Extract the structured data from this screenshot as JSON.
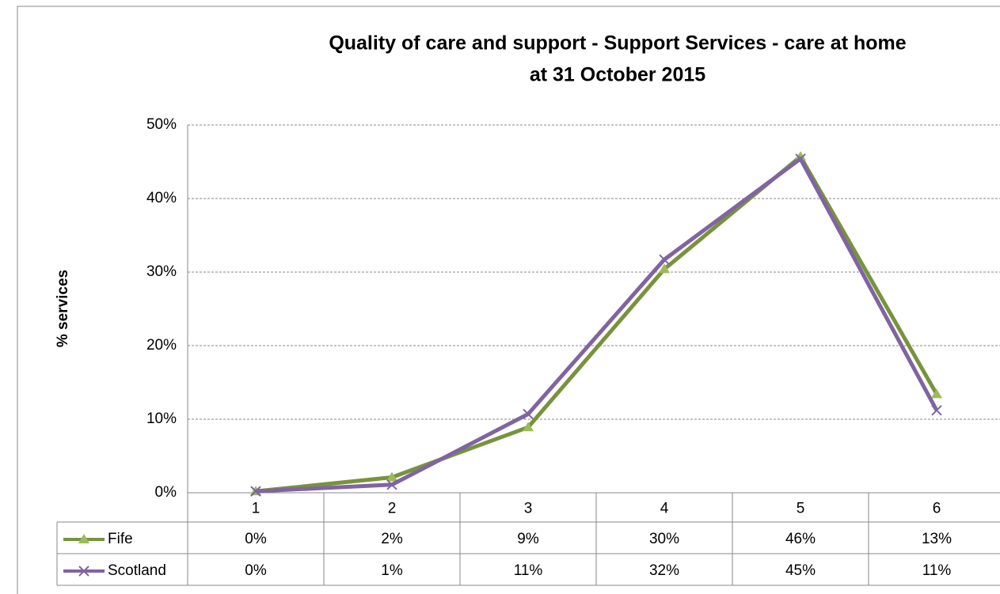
{
  "chart_data": {
    "type": "line",
    "title": [
      "Quality of care and support -  Support Services - care at home",
      "at 31 October 2015"
    ],
    "y_label": "% services",
    "categories": [
      "1",
      "2",
      "3",
      "4",
      "5",
      "6"
    ],
    "series": [
      {
        "name": "Fife",
        "color": "#77933c",
        "marker_color": "#9bbb59",
        "marker": "triangle",
        "values": [
          0.2,
          2.1,
          8.9,
          30.4,
          45.7,
          13.4
        ],
        "value_labels": [
          "0%",
          "2%",
          "9%",
          "30%",
          "46%",
          "13%"
        ]
      },
      {
        "name": "Scotland",
        "color": "#8064a2",
        "marker_color": "#8064a2",
        "marker": "x",
        "values": [
          0.2,
          1.1,
          10.7,
          31.7,
          45.4,
          11.2
        ],
        "value_labels": [
          "0%",
          "1%",
          "11%",
          "32%",
          "45%",
          "11%"
        ]
      }
    ],
    "ylim": [
      0,
      50
    ],
    "yticks": [
      {
        "value": 0,
        "label": "0%"
      },
      {
        "value": 10,
        "label": "10%"
      },
      {
        "value": 20,
        "label": "20%"
      },
      {
        "value": 30,
        "label": "30%"
      },
      {
        "value": 40,
        "label": "40%"
      },
      {
        "value": 50,
        "label": "50%"
      }
    ],
    "grid": true
  }
}
